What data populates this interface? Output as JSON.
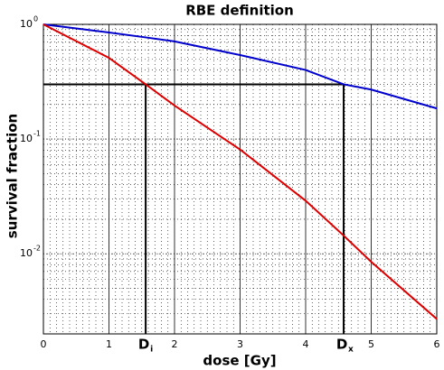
{
  "chart_data": {
    "type": "line",
    "title": "RBE definition",
    "xlabel": "dose [Gy]",
    "ylabel": "survival fraction",
    "x": [
      0,
      1,
      1.56,
      2,
      3,
      4,
      4.58,
      5,
      6
    ],
    "series": [
      {
        "color": "#0000cc",
        "values": [
          1,
          0.85,
          0.77,
          0.71,
          0.54,
          0.4,
          0.3,
          0.27,
          0.185
        ]
      },
      {
        "color": "#dd0000",
        "values": [
          1,
          0.51,
          0.3,
          0.196,
          0.081,
          0.029,
          0.0144,
          0.0085,
          0.0027
        ]
      }
    ],
    "xlim": [
      0,
      6
    ],
    "xticks": [
      0,
      1,
      2,
      3,
      4,
      5,
      6
    ],
    "ylim": [
      0.002,
      1
    ],
    "log_y": true,
    "yticks": [
      {
        "value": 1,
        "label": "10",
        "exp": "0"
      },
      {
        "value": 0.1,
        "label": "10",
        "exp": "-1"
      },
      {
        "value": 0.01,
        "label": "10",
        "exp": "-2"
      }
    ],
    "grid": true,
    "minor_grid": true,
    "reference_level": 0.3,
    "annotations": [
      {
        "text": "D",
        "sub": "i",
        "x": 1.56
      },
      {
        "text": "D",
        "sub": "x",
        "x": 4.58
      }
    ]
  }
}
